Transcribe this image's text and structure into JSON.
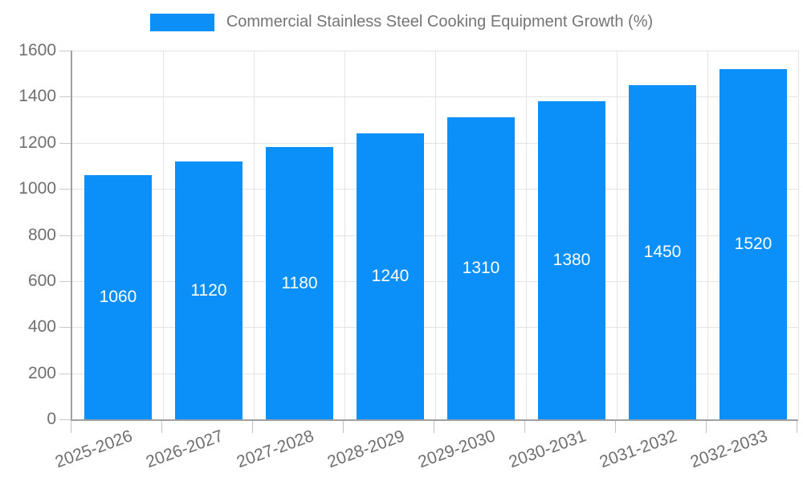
{
  "chart_data": {
    "type": "bar",
    "title": "Commercial Stainless Steel Cooking Equipment Growth (%)",
    "legend_position": "top",
    "categories": [
      "2025-2026",
      "2026-2027",
      "2027-2028",
      "2028-2029",
      "2029-2030",
      "2030-2031",
      "2031-2032",
      "2032-2033"
    ],
    "values": [
      1060,
      1120,
      1180,
      1240,
      1310,
      1380,
      1450,
      1520
    ],
    "xlabel": "",
    "ylabel": "",
    "ylim": [
      0,
      1600
    ],
    "yticks": [
      0,
      200,
      400,
      600,
      800,
      1000,
      1200,
      1400,
      1600
    ],
    "grid": true,
    "x_label_rotation_deg": -20,
    "colors": {
      "bar": "#0b8ff9",
      "bar_value_label": "#ffffff",
      "grid": "#e4e4e4",
      "axis_line": "#a0a0a0",
      "tick_text": "#6f6f6f",
      "title_text": "#757575"
    }
  }
}
